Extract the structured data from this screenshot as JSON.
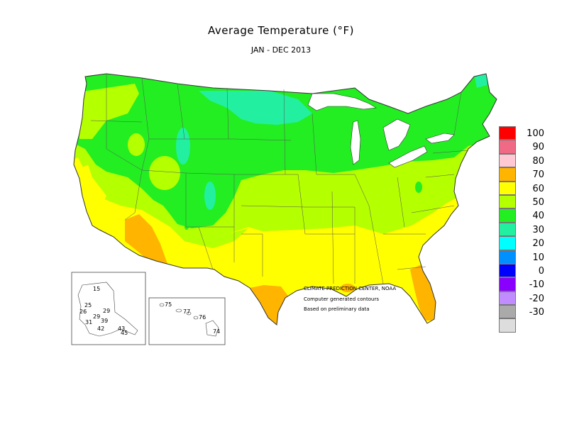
{
  "header": {
    "title": "Average Temperature (°F)",
    "subtitle": "JAN - DEC 2013"
  },
  "legend": {
    "items": [
      {
        "value": "100",
        "color": "#ff0000"
      },
      {
        "value": "90",
        "color": "#f06a85"
      },
      {
        "value": "80",
        "color": "#ffc8d2"
      },
      {
        "value": "70",
        "color": "#ffb400"
      },
      {
        "value": "60",
        "color": "#ffff00"
      },
      {
        "value": "50",
        "color": "#b4ff00"
      },
      {
        "value": "40",
        "color": "#22ee22"
      },
      {
        "value": "30",
        "color": "#22f0a0"
      },
      {
        "value": "20",
        "color": "#00ffff"
      },
      {
        "value": "10",
        "color": "#0090ff"
      },
      {
        "value": "0",
        "color": "#0000ff"
      },
      {
        "value": "-10",
        "color": "#8a00ff"
      },
      {
        "value": "-20",
        "color": "#c08cff"
      },
      {
        "value": "-30",
        "color": "#aaaaaa"
      },
      {
        "value": "",
        "color": "#dddddd"
      }
    ]
  },
  "credits": {
    "line1": "CLIMATE PREDICTION CENTER, NOAA",
    "line2": "Computer generated contours",
    "line3": "Based on preliminary data"
  },
  "alaska_labels": [
    "15",
    "25",
    "26",
    "29",
    "29",
    "39",
    "31",
    "42",
    "43",
    "45"
  ],
  "hawaii_labels": [
    "75",
    "77",
    "76",
    "74"
  ],
  "colors": {
    "band_50": "#b4ff00",
    "band_40": "#22ee22",
    "band_30": "#22f0a0",
    "band_60": "#ffff00",
    "band_70": "#ffb400",
    "water": "#ffffff",
    "borders": "#555555"
  }
}
